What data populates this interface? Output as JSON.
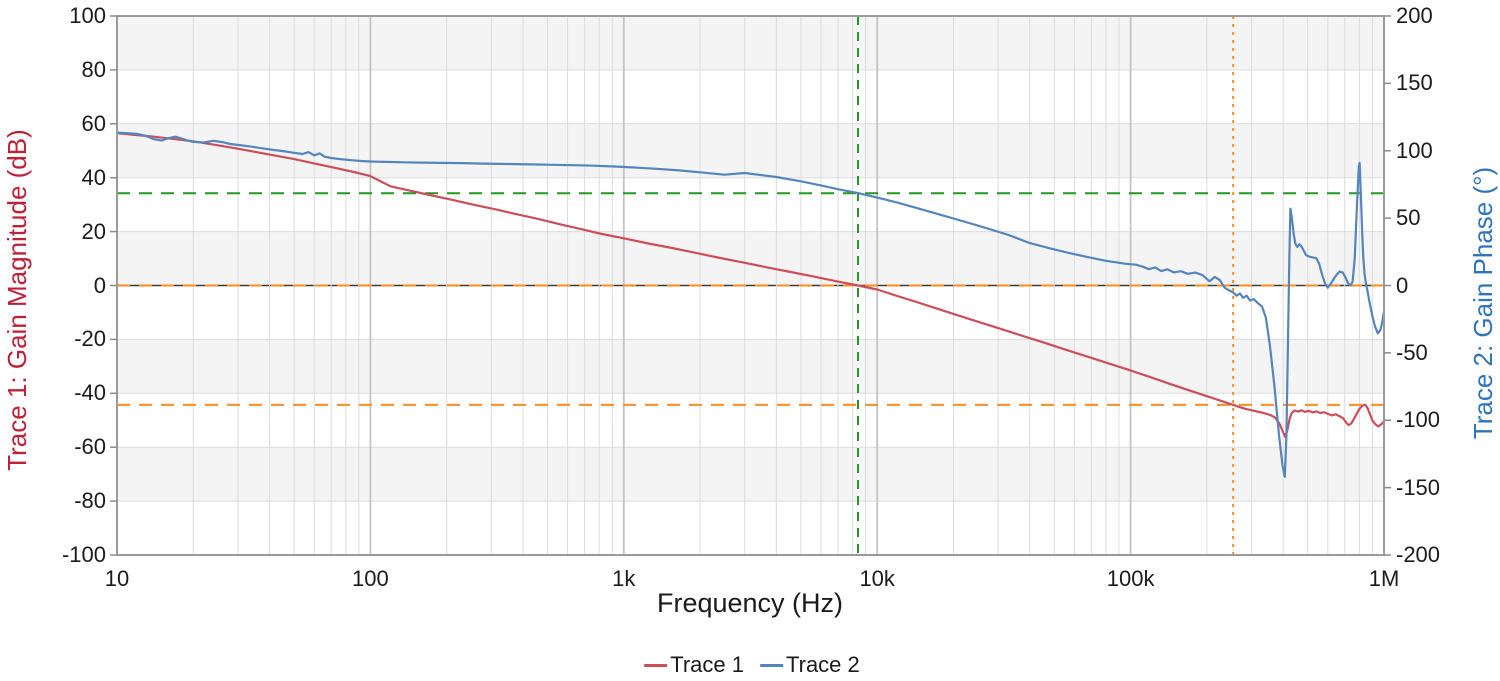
{
  "chart_data": {
    "type": "line",
    "xlabel": "Frequency (Hz)",
    "x_scale": "log",
    "x_min": 10,
    "x_max": 1000000,
    "grid": true,
    "x_ticks": [
      {
        "value": 10,
        "label": "10"
      },
      {
        "value": 100,
        "label": "100"
      },
      {
        "value": 1000,
        "label": "1k"
      },
      {
        "value": 10000,
        "label": "10k"
      },
      {
        "value": 100000,
        "label": "100k"
      },
      {
        "value": 1000000,
        "label": "1M"
      }
    ],
    "left_axis": {
      "title": "Trace 1: Gain Magnitude (dB)",
      "title_color": "#bf2038",
      "min": -100,
      "max": 100,
      "ticks": [
        100,
        80,
        60,
        40,
        20,
        0,
        -20,
        -40,
        -60,
        -80,
        -100
      ]
    },
    "right_axis": {
      "title": "Trace 2: Gain Phase (°)",
      "title_color": "#2d74b9",
      "min": -200,
      "max": 200,
      "ticks": [
        200,
        150,
        100,
        50,
        0,
        -50,
        -100,
        -150,
        -200
      ]
    },
    "colors": {
      "band": "#f4f4f5",
      "grid_minor": "#dcdcdc",
      "grid_major": "#c3c3c3",
      "zero_line": "#3c3c3c",
      "border": "#9a9a9a",
      "cursor_green": "#21991f",
      "cursor_orange": "#ff8d1e",
      "trace1": "#cb4e5a",
      "trace2": "#5585bd"
    },
    "cursors": [
      {
        "name": "cursor-gain-crossover-vertical",
        "orientation": "vertical",
        "value": 8400,
        "color": "cursor_green",
        "dash": "dash-v"
      },
      {
        "name": "cursor-phase-margin-horizontal",
        "orientation": "horizontal",
        "axis": "right",
        "value": 68.5,
        "color": "cursor_green",
        "dash": "dash-h"
      },
      {
        "name": "cursor-zero-reference-horizontal",
        "orientation": "horizontal",
        "axis": "left",
        "value": 0,
        "color": "cursor_orange",
        "dash": "dash-h"
      },
      {
        "name": "cursor-phase-crossover-vertical",
        "orientation": "vertical",
        "value": 254000,
        "color": "cursor_orange",
        "dash": "dot"
      },
      {
        "name": "cursor-gain-margin-horizontal",
        "orientation": "horizontal",
        "axis": "left",
        "value": -44.3,
        "color": "cursor_orange",
        "dash": "dash-h"
      }
    ],
    "legend": [
      {
        "label": "Trace 1",
        "color": "trace1"
      },
      {
        "label": "Trace 2",
        "color": "trace2"
      }
    ],
    "series": [
      {
        "name": "Trace 1",
        "axis": "left",
        "color": "trace1",
        "points": [
          [
            10,
            56.5
          ],
          [
            12,
            55.8
          ],
          [
            14,
            55.2
          ],
          [
            17,
            54.3
          ],
          [
            20,
            53.5
          ],
          [
            24,
            52.3
          ],
          [
            29,
            51.0
          ],
          [
            35,
            49.6
          ],
          [
            42,
            48.2
          ],
          [
            50,
            46.9
          ],
          [
            60,
            45.3
          ],
          [
            72,
            43.7
          ],
          [
            86,
            42.1
          ],
          [
            100,
            40.6
          ],
          [
            120,
            36.8
          ],
          [
            145,
            35.1
          ],
          [
            175,
            33.4
          ],
          [
            210,
            31.8
          ],
          [
            255,
            30.0
          ],
          [
            310,
            28.3
          ],
          [
            375,
            26.5
          ],
          [
            455,
            24.8
          ],
          [
            550,
            22.9
          ],
          [
            680,
            20.9
          ],
          [
            820,
            19.1
          ],
          [
            1000,
            17.5
          ],
          [
            1250,
            15.6
          ],
          [
            1550,
            13.9
          ],
          [
            1900,
            12.2
          ],
          [
            2350,
            10.4
          ],
          [
            2900,
            8.7
          ],
          [
            3600,
            6.9
          ],
          [
            4450,
            5.2
          ],
          [
            5500,
            3.5
          ],
          [
            6800,
            1.7
          ],
          [
            8400,
            0.0
          ],
          [
            10000,
            -1.5
          ],
          [
            12000,
            -3.9
          ],
          [
            14500,
            -6.3
          ],
          [
            17500,
            -8.8
          ],
          [
            21000,
            -11.2
          ],
          [
            25500,
            -13.7
          ],
          [
            31000,
            -16.2
          ],
          [
            37500,
            -18.7
          ],
          [
            45500,
            -21.2
          ],
          [
            55000,
            -23.7
          ],
          [
            66500,
            -26.2
          ],
          [
            80500,
            -28.7
          ],
          [
            97500,
            -31.2
          ],
          [
            118000,
            -33.8
          ],
          [
            143000,
            -36.5
          ],
          [
            173000,
            -39.1
          ],
          [
            210000,
            -41.7
          ],
          [
            254000,
            -44.3
          ],
          [
            280000,
            -45.6
          ],
          [
            310000,
            -46.6
          ],
          [
            335000,
            -47.3
          ],
          [
            355000,
            -48.0
          ],
          [
            372000,
            -49.0
          ],
          [
            388000,
            -51.5
          ],
          [
            400000,
            -54.5
          ],
          [
            408000,
            -56.2
          ],
          [
            416000,
            -53.5
          ],
          [
            424000,
            -49.5
          ],
          [
            433000,
            -47.2
          ],
          [
            444000,
            -46.4
          ],
          [
            458000,
            -46.8
          ],
          [
            472000,
            -46.3
          ],
          [
            488000,
            -46.9
          ],
          [
            505000,
            -46.5
          ],
          [
            522000,
            -47.1
          ],
          [
            540000,
            -46.7
          ],
          [
            560000,
            -47.3
          ],
          [
            580000,
            -47.0
          ],
          [
            600000,
            -47.6
          ],
          [
            622000,
            -48.2
          ],
          [
            645000,
            -47.8
          ],
          [
            668000,
            -48.5
          ],
          [
            690000,
            -49.3
          ],
          [
            708000,
            -50.8
          ],
          [
            725000,
            -51.8
          ],
          [
            742000,
            -51.2
          ],
          [
            760000,
            -49.6
          ],
          [
            780000,
            -47.6
          ],
          [
            800000,
            -45.8
          ],
          [
            822000,
            -44.6
          ],
          [
            843000,
            -44.2
          ],
          [
            862000,
            -45.6
          ],
          [
            882000,
            -48.0
          ],
          [
            902000,
            -50.2
          ],
          [
            925000,
            -51.5
          ],
          [
            950000,
            -52.3
          ],
          [
            972000,
            -51.6
          ],
          [
            1000000,
            -50.4
          ]
        ]
      },
      {
        "name": "Trace 2",
        "axis": "right",
        "color": "trace2",
        "points": [
          [
            10,
            113.5
          ],
          [
            11,
            113.0
          ],
          [
            12,
            112.4
          ],
          [
            13,
            111.0
          ],
          [
            14,
            108.6
          ],
          [
            15,
            107.6
          ],
          [
            16,
            109.4
          ],
          [
            17,
            110.4
          ],
          [
            18,
            109.0
          ],
          [
            19,
            107.6
          ],
          [
            20,
            106.6
          ],
          [
            22,
            106.1
          ],
          [
            24,
            107.4
          ],
          [
            26,
            106.4
          ],
          [
            28,
            105.0
          ],
          [
            31,
            104.0
          ],
          [
            34,
            103.0
          ],
          [
            38,
            101.6
          ],
          [
            42,
            100.5
          ],
          [
            46,
            99.5
          ],
          [
            50,
            98.5
          ],
          [
            54,
            97.6
          ],
          [
            57,
            99.0
          ],
          [
            60,
            96.6
          ],
          [
            63,
            98.0
          ],
          [
            66,
            95.6
          ],
          [
            70,
            94.6
          ],
          [
            76,
            93.8
          ],
          [
            84,
            93.0
          ],
          [
            92,
            92.4
          ],
          [
            100,
            92.0
          ],
          [
            115,
            91.7
          ],
          [
            135,
            91.4
          ],
          [
            160,
            91.2
          ],
          [
            190,
            91.0
          ],
          [
            230,
            90.8
          ],
          [
            280,
            90.5
          ],
          [
            350,
            90.2
          ],
          [
            430,
            89.9
          ],
          [
            520,
            89.6
          ],
          [
            630,
            89.3
          ],
          [
            760,
            88.9
          ],
          [
            920,
            88.3
          ],
          [
            1100,
            87.6
          ],
          [
            1350,
            86.6
          ],
          [
            1650,
            85.4
          ],
          [
            2000,
            84.0
          ],
          [
            2500,
            82.2
          ],
          [
            3000,
            83.5
          ],
          [
            4000,
            80.5
          ],
          [
            5000,
            77.3
          ],
          [
            6000,
            74.3
          ],
          [
            7000,
            71.5
          ],
          [
            8400,
            68.6
          ],
          [
            10000,
            65.2
          ],
          [
            12000,
            61.5
          ],
          [
            15000,
            56.5
          ],
          [
            18000,
            52.2
          ],
          [
            22000,
            47.5
          ],
          [
            27000,
            42.5
          ],
          [
            33000,
            37.5
          ],
          [
            40000,
            31.5
          ],
          [
            48000,
            27.6
          ],
          [
            57000,
            24.2
          ],
          [
            68000,
            21.0
          ],
          [
            80000,
            18.3
          ],
          [
            95000,
            16.2
          ],
          [
            105000,
            15.4
          ],
          [
            112000,
            13.9
          ],
          [
            118000,
            12.1
          ],
          [
            125000,
            13.4
          ],
          [
            132000,
            10.7
          ],
          [
            140000,
            12.0
          ],
          [
            148000,
            9.7
          ],
          [
            158000,
            10.6
          ],
          [
            168000,
            8.7
          ],
          [
            180000,
            9.6
          ],
          [
            192000,
            7.7
          ],
          [
            205000,
            3.1
          ],
          [
            215000,
            6.4
          ],
          [
            225000,
            4.0
          ],
          [
            235000,
            -1.6
          ],
          [
            245000,
            -3.6
          ],
          [
            254000,
            -5.1
          ],
          [
            262000,
            -7.6
          ],
          [
            270000,
            -5.9
          ],
          [
            278000,
            -9.1
          ],
          [
            287000,
            -7.6
          ],
          [
            296000,
            -11.1
          ],
          [
            306000,
            -10.1
          ],
          [
            318000,
            -13.1
          ],
          [
            330000,
            -15.6
          ],
          [
            342000,
            -24.0
          ],
          [
            355000,
            -45.0
          ],
          [
            370000,
            -76.0
          ],
          [
            385000,
            -111.0
          ],
          [
            398000,
            -134.0
          ],
          [
            406000,
            -142.0
          ],
          [
            412000,
            -112.0
          ],
          [
            418000,
            -41.0
          ],
          [
            423000,
            19.0
          ],
          [
            427000,
            57.0
          ],
          [
            433000,
            50.0
          ],
          [
            440000,
            38.0
          ],
          [
            447000,
            31.0
          ],
          [
            455000,
            28.6
          ],
          [
            463000,
            30.6
          ],
          [
            472000,
            29.0
          ],
          [
            482000,
            26.0
          ],
          [
            492000,
            22.6
          ],
          [
            505000,
            21.6
          ],
          [
            520000,
            20.9
          ],
          [
            540000,
            20.3
          ],
          [
            555000,
            16.0
          ],
          [
            570000,
            8.0
          ],
          [
            585000,
            1.6
          ],
          [
            600000,
            -1.6
          ],
          [
            615000,
            1.0
          ],
          [
            632000,
            4.6
          ],
          [
            650000,
            8.0
          ],
          [
            668000,
            10.3
          ],
          [
            688000,
            9.6
          ],
          [
            705000,
            6.0
          ],
          [
            720000,
            2.0
          ],
          [
            738000,
            0.0
          ],
          [
            752000,
            3.0
          ],
          [
            766000,
            20.0
          ],
          [
            780000,
            55.0
          ],
          [
            795000,
            88.0
          ],
          [
            801000,
            91.0
          ],
          [
            808000,
            75.0
          ],
          [
            818000,
            45.0
          ],
          [
            828000,
            22.0
          ],
          [
            838000,
            8.0
          ],
          [
            850000,
            1.0
          ],
          [
            862000,
            -5.0
          ],
          [
            878000,
            -13.0
          ],
          [
            898000,
            -22.0
          ],
          [
            920000,
            -30.0
          ],
          [
            945000,
            -35.5
          ],
          [
            968000,
            -33.0
          ],
          [
            985000,
            -27.0
          ],
          [
            1000000,
            -19.0
          ]
        ]
      }
    ]
  }
}
